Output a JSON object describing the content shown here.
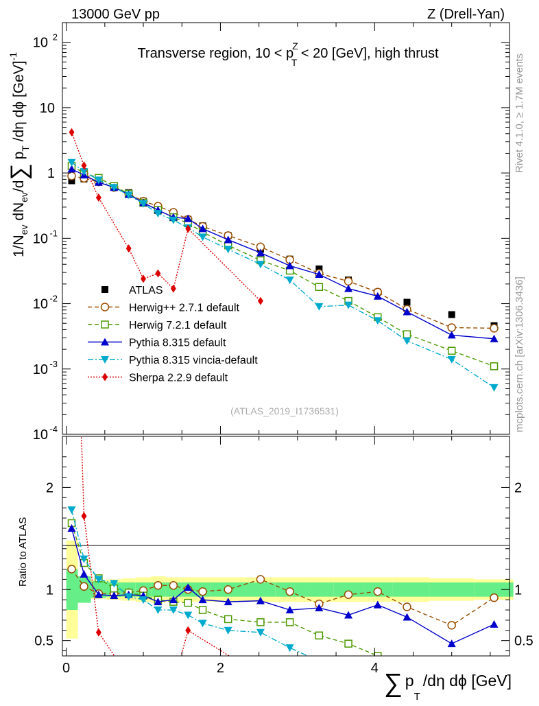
{
  "header": {
    "left": "13000 GeV pp",
    "right": "Z (Drell-Yan)"
  },
  "side_text": {
    "rivet": "Rivet 4.1.0, ≥ 1.7M events",
    "mcplots": "mcplots.cern.ch [arXiv:1306.3436]"
  },
  "chart_data": {
    "type": "line",
    "title": "Transverse region, 10 < p_T^Z < 20 [GeV], high thrust",
    "title_parts": {
      "pre": "Transverse region, 10 < p",
      "sup": "Z",
      "sub": "T",
      "post": " < 20 [GeV], high thrust"
    },
    "analysis_id": "(ATLAS_2019_I1736531)",
    "xlabel": "∑ p_T /dη dϕ [GeV]",
    "xlabel_parts": {
      "sum": "∑",
      "p": "p",
      "sub": "T",
      "rest": "/dη dϕ [GeV]"
    },
    "ylabel": "1/N_ev dN_ev/d ∑ p_T /dη dϕ [GeV]^-1",
    "ylabel_parts": {
      "a": "1/N",
      "ev1": "ev",
      "b": " dN",
      "ev2": "ev",
      "c": "/d",
      "sum": "∑",
      "p": " p",
      "t": "T",
      "d": " /dη dϕ  [GeV]",
      "exp": "-1"
    },
    "ratio_ylabel": "Ratio to ATLAS",
    "xlim": [
      -0.05,
      5.75
    ],
    "ylim": [
      0.0001,
      200
    ],
    "ratio_ylim": [
      0.35,
      2.5
    ],
    "x_ticks": [
      "0",
      "2",
      "4"
    ],
    "x_tick_values": [
      0,
      2,
      4
    ],
    "y_ticks": [
      {
        "base": "10",
        "exp": "-4",
        "value": 0.0001
      },
      {
        "base": "10",
        "exp": "-3",
        "value": 0.001
      },
      {
        "base": "10",
        "exp": "-2",
        "value": 0.01
      },
      {
        "base": "10",
        "exp": "-1",
        "value": 0.1
      },
      {
        "base": "1",
        "exp": "",
        "value": 1
      },
      {
        "base": "10",
        "exp": "",
        "value": 10
      },
      {
        "base": "10",
        "exp": "2",
        "value": 100
      }
    ],
    "ratio_ticks": [
      {
        "label": "0.5",
        "value": 0.5
      },
      {
        "label": "1",
        "value": 1
      },
      {
        "label": "2",
        "value": 2
      }
    ],
    "x": [
      0.07,
      0.23,
      0.42,
      0.62,
      0.81,
      1.0,
      1.19,
      1.39,
      1.58,
      1.77,
      2.1,
      2.52,
      2.9,
      3.28,
      3.66,
      4.04,
      4.42,
      5.0,
      5.55
    ],
    "bin_edges": [
      0.0,
      0.15,
      0.32,
      0.52,
      0.72,
      0.9,
      1.1,
      1.29,
      1.49,
      1.68,
      1.87,
      2.33,
      2.71,
      3.09,
      3.47,
      3.85,
      4.23,
      4.71,
      5.29,
      5.8
    ],
    "ratio_band_green": [
      0.2,
      0.13,
      0.08,
      0.07,
      0.07,
      0.07,
      0.07,
      0.07,
      0.07,
      0.07,
      0.07,
      0.07,
      0.07,
      0.07,
      0.07,
      0.07,
      0.07,
      0.07,
      0.07
    ],
    "ratio_band_yellow": [
      0.48,
      0.1,
      0.09,
      0.1,
      0.11,
      0.12,
      0.13,
      0.12,
      0.12,
      0.12,
      0.12,
      0.12,
      0.12,
      0.12,
      0.12,
      0.12,
      0.12,
      0.11,
      0.1
    ],
    "series": [
      {
        "name": "ATLAS",
        "color": "#000000",
        "marker": "square-filled",
        "dash": "none",
        "values": [
          0.76,
          0.81,
          0.76,
          0.62,
          0.5,
          0.37,
          0.3,
          0.24,
          0.195,
          0.155,
          0.11,
          0.068,
          0.048,
          0.034,
          0.023,
          0.015,
          0.0105,
          0.0068,
          0.0046
        ],
        "ratio": [
          1,
          1,
          1,
          1,
          1,
          1,
          1,
          1,
          1,
          1,
          1,
          1,
          1,
          1,
          1,
          1,
          1,
          1,
          1
        ]
      },
      {
        "name": "Herwig++ 2.7.1 default",
        "color": "#994C00",
        "marker": "circle-open",
        "dash": "6,4",
        "values": [
          0.9,
          0.83,
          0.73,
          0.6,
          0.48,
          0.37,
          0.31,
          0.25,
          0.195,
          0.152,
          0.11,
          0.074,
          0.047,
          0.029,
          0.022,
          0.015,
          0.0082,
          0.0043,
          0.0042
        ],
        "ratio": [
          1.2,
          1.03,
          0.96,
          0.96,
          0.97,
          0.99,
          1.04,
          1.04,
          1.0,
          0.98,
          1.0,
          1.1,
          0.98,
          0.86,
          0.95,
          0.98,
          0.83,
          0.65,
          0.92
        ]
      },
      {
        "name": "Herwig 7.2.1 default",
        "color": "#4C9900",
        "marker": "square-open",
        "dash": "6,4",
        "values": [
          1.28,
          1.0,
          0.84,
          0.63,
          0.48,
          0.35,
          0.27,
          0.21,
          0.17,
          0.125,
          0.078,
          0.046,
          0.032,
          0.018,
          0.011,
          0.0062,
          0.0034,
          0.0019,
          0.0011
        ],
        "ratio": [
          1.65,
          1.26,
          1.11,
          1.01,
          0.97,
          0.94,
          0.9,
          0.88,
          0.87,
          0.8,
          0.71,
          0.68,
          0.68,
          0.55,
          0.47,
          0.35,
          0.3,
          0.28,
          0.24
        ]
      },
      {
        "name": "Pythia 8.315 default",
        "color": "#0000CC",
        "marker": "triangle-up",
        "dash": "none",
        "values": [
          1.15,
          0.93,
          0.72,
          0.6,
          0.47,
          0.35,
          0.27,
          0.21,
          0.2,
          0.14,
          0.095,
          0.06,
          0.038,
          0.028,
          0.017,
          0.013,
          0.0075,
          0.0033,
          0.0029
        ],
        "ratio": [
          1.6,
          1.15,
          0.95,
          0.94,
          0.95,
          0.94,
          0.88,
          0.9,
          1.02,
          0.9,
          0.88,
          0.89,
          0.8,
          0.82,
          0.75,
          0.85,
          0.73,
          0.47,
          0.66
        ]
      },
      {
        "name": "Pythia 8.315 vincia-default",
        "color": "#00AACC",
        "marker": "triangle-down",
        "dash": "8,3,2,3",
        "values": [
          1.45,
          1.05,
          0.78,
          0.6,
          0.46,
          0.34,
          0.24,
          0.19,
          0.145,
          0.105,
          0.068,
          0.04,
          0.023,
          0.009,
          0.0095,
          0.0055,
          0.0027,
          0.0014,
          0.00052
        ],
        "ratio": [
          1.78,
          1.3,
          1.1,
          1.06,
          0.93,
          0.9,
          0.8,
          0.8,
          0.75,
          0.67,
          0.6,
          0.58,
          0.43,
          0.3,
          0.3,
          0.25,
          0.22,
          0.2,
          0.15
        ]
      },
      {
        "name": "Sherpa 2.2.9 default",
        "color": "#DD0000",
        "marker": "diamond",
        "dash": "2,2",
        "values": [
          4.2,
          1.3,
          0.42,
          null,
          0.07,
          0.024,
          0.029,
          0.017,
          0.14,
          null,
          null,
          0.011,
          null,
          null,
          null,
          null,
          null,
          null,
          null
        ],
        "ratio": [
          5.5,
          1.72,
          0.58,
          null,
          0.14,
          0.06,
          0.1,
          0.07,
          0.6,
          null,
          null,
          0.16,
          null,
          null,
          null,
          null,
          null,
          null,
          null
        ]
      }
    ]
  }
}
